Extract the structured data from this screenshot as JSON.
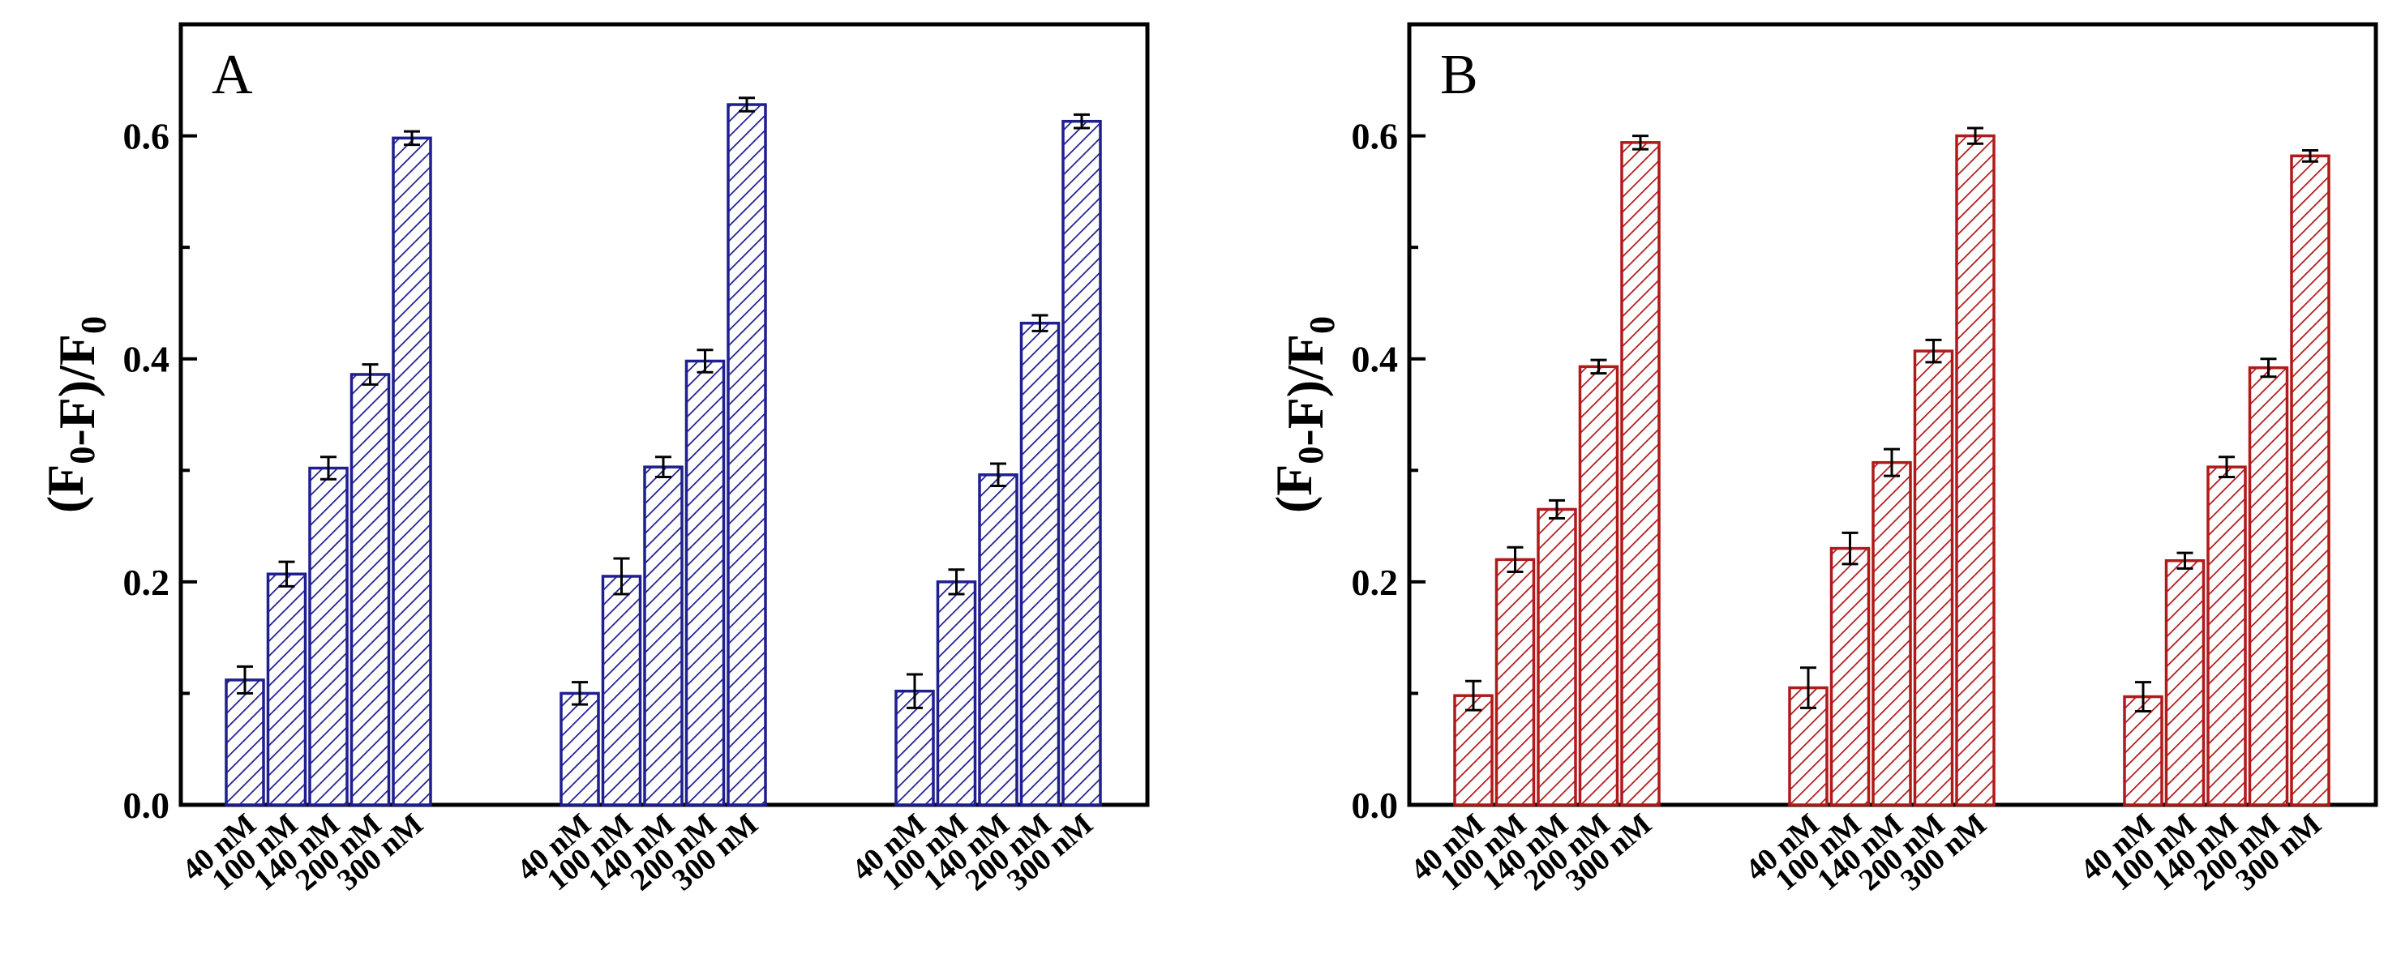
{
  "chart_data": [
    {
      "type": "bar",
      "panel_label": "A",
      "ylabel": "(F0-F)/F0",
      "ylim": [
        0,
        0.7
      ],
      "yticks": [
        0.0,
        0.2,
        0.4,
        0.6
      ],
      "ytick_labels": [
        "0.0",
        "0.2",
        "0.4",
        "0.6"
      ],
      "color": "#1f1f8f",
      "fill_pattern": "diagonal-hatch",
      "categories": [
        "40 nM",
        "100 nM",
        "140 nM",
        "200 nM",
        "300 nM"
      ],
      "groups": [
        {
          "values": [
            0.112,
            0.207,
            0.302,
            0.386,
            0.598
          ],
          "errors": [
            0.012,
            0.011,
            0.01,
            0.009,
            0.006
          ]
        },
        {
          "values": [
            0.1,
            0.205,
            0.303,
            0.398,
            0.628
          ],
          "errors": [
            0.01,
            0.016,
            0.009,
            0.01,
            0.006
          ]
        },
        {
          "values": [
            0.102,
            0.2,
            0.296,
            0.432,
            0.613
          ],
          "errors": [
            0.015,
            0.011,
            0.01,
            0.007,
            0.006
          ]
        }
      ]
    },
    {
      "type": "bar",
      "panel_label": "B",
      "ylabel": "(F0-F)/F0",
      "ylim": [
        0,
        0.7
      ],
      "yticks": [
        0.0,
        0.2,
        0.4,
        0.6
      ],
      "ytick_labels": [
        "0.0",
        "0.2",
        "0.4",
        "0.6"
      ],
      "color": "#b01a1a",
      "fill_pattern": "diagonal-hatch",
      "categories": [
        "40 nM",
        "100 nM",
        "140 nM",
        "200 nM",
        "300 nM"
      ],
      "groups": [
        {
          "values": [
            0.098,
            0.22,
            0.265,
            0.393,
            0.594
          ],
          "errors": [
            0.013,
            0.011,
            0.008,
            0.006,
            0.006
          ]
        },
        {
          "values": [
            0.105,
            0.23,
            0.307,
            0.407,
            0.6
          ],
          "errors": [
            0.018,
            0.014,
            0.012,
            0.01,
            0.007
          ]
        },
        {
          "values": [
            0.097,
            0.219,
            0.303,
            0.392,
            0.582
          ],
          "errors": [
            0.013,
            0.007,
            0.009,
            0.008,
            0.005
          ]
        }
      ]
    }
  ]
}
